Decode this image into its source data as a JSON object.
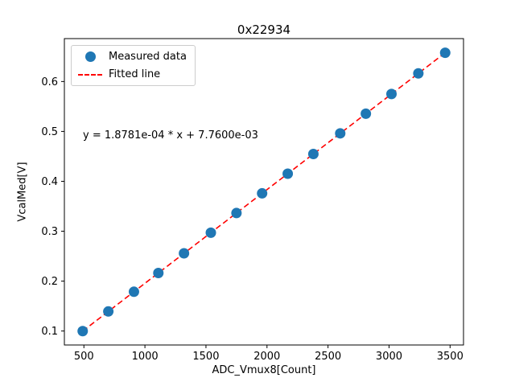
{
  "chart_data": {
    "type": "scatter",
    "title": "0x22934",
    "xlabel": "ADC_Vmux8[Count]",
    "ylabel": "VcalMed[V]",
    "annotation": "y = 1.8781e-04 * x + 7.7600e-03",
    "legend": [
      {
        "label": "Measured data",
        "marker": "point",
        "color": "#1f77b4"
      },
      {
        "label": "Fitted line",
        "marker": "dashed-line",
        "color": "#ff0000"
      }
    ],
    "legend_position": "upper-left",
    "grid": false,
    "fit": {
      "slope": 0.00018781,
      "intercept": 0.00776
    },
    "x": [
      490,
      700,
      910,
      1110,
      1320,
      1540,
      1750,
      1960,
      2170,
      2380,
      2600,
      2810,
      3020,
      3240,
      3460
    ],
    "y": [
      0.0998,
      0.1392,
      0.1787,
      0.2162,
      0.2557,
      0.297,
      0.3364,
      0.3759,
      0.4153,
      0.4547,
      0.4961,
      0.5355,
      0.575,
      0.6163,
      0.6576
    ],
    "xticks": [
      500,
      1000,
      1500,
      2000,
      2500,
      3000,
      3500
    ],
    "yticks": [
      0.1,
      0.2,
      0.3,
      0.4,
      0.5,
      0.6
    ],
    "xlim": [
      340,
      3610
    ],
    "ylim": [
      0.072,
      0.686
    ],
    "colors": {
      "point": "#1f77b4",
      "line": "#ff0000",
      "spine": "#000000"
    }
  }
}
